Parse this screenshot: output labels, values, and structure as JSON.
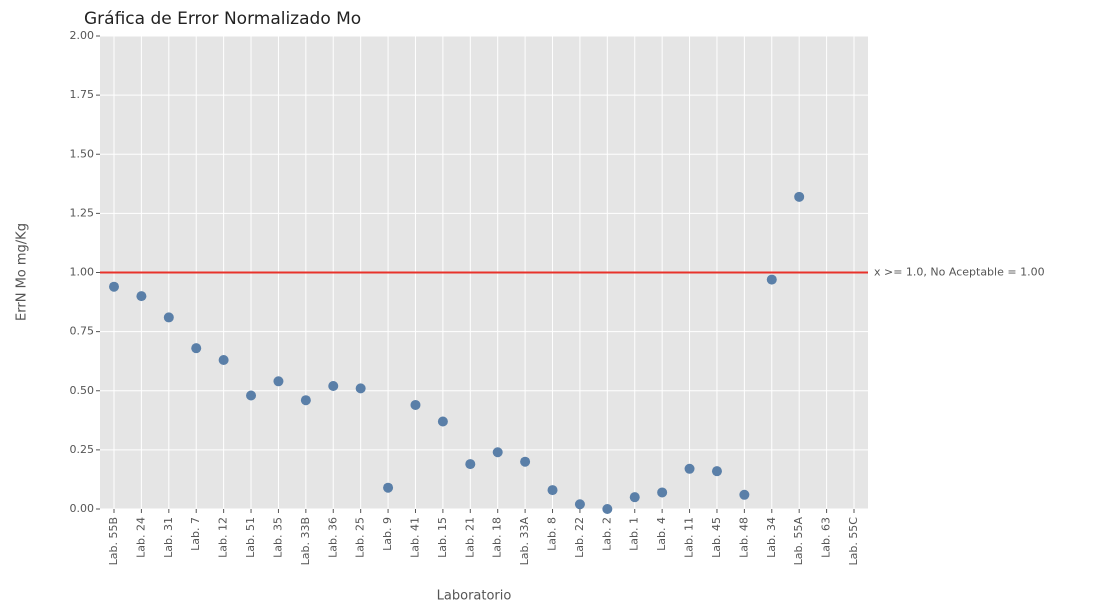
{
  "chart_data": {
    "type": "scatter",
    "title": "Gráfica de Error Normalizado Mo",
    "x_label": "Laboratorio",
    "y_label": "ErrN Mo mg/Kg",
    "categories": [
      "Lab. 55B",
      "Lab. 24",
      "Lab. 31",
      "Lab. 7",
      "Lab. 12",
      "Lab. 51",
      "Lab. 35",
      "Lab. 33B",
      "Lab. 36",
      "Lab. 25",
      "Lab. 9",
      "Lab. 41",
      "Lab. 15",
      "Lab. 21",
      "Lab. 18",
      "Lab. 33A",
      "Lab. 8",
      "Lab. 22",
      "Lab. 2",
      "Lab. 1",
      "Lab. 4",
      "Lab. 11",
      "Lab. 45",
      "Lab. 48",
      "Lab. 34",
      "Lab. 55A",
      "Lab. 63",
      "Lab. 55C"
    ],
    "values": [
      0.94,
      0.9,
      0.81,
      0.68,
      0.63,
      0.48,
      0.54,
      0.46,
      0.52,
      0.51,
      0.09,
      0.44,
      0.37,
      0.19,
      0.24,
      0.2,
      0.08,
      0.02,
      0.0,
      0.05,
      0.07,
      0.17,
      0.16,
      0.06,
      0.97,
      1.32,
      null,
      null
    ],
    "color": "#5a7fa8",
    "ylim": [
      0,
      2
    ],
    "yticks": [
      {
        "value": 0,
        "label": "0.00"
      },
      {
        "value": 0.25,
        "label": "0.25"
      },
      {
        "value": 0.5,
        "label": "0.50"
      },
      {
        "value": 0.75,
        "label": "0.75"
      },
      {
        "value": 1,
        "label": "1.00"
      },
      {
        "value": 1.25,
        "label": "1.25"
      },
      {
        "value": 1.5,
        "label": "1.50"
      },
      {
        "value": 1.75,
        "label": "1.75"
      },
      {
        "value": 2,
        "label": "2.00"
      }
    ],
    "grid": true,
    "threshold": {
      "value": 1,
      "label": "x >= 1.0, No Aceptable = 1.00",
      "color": "#e8322b"
    }
  }
}
